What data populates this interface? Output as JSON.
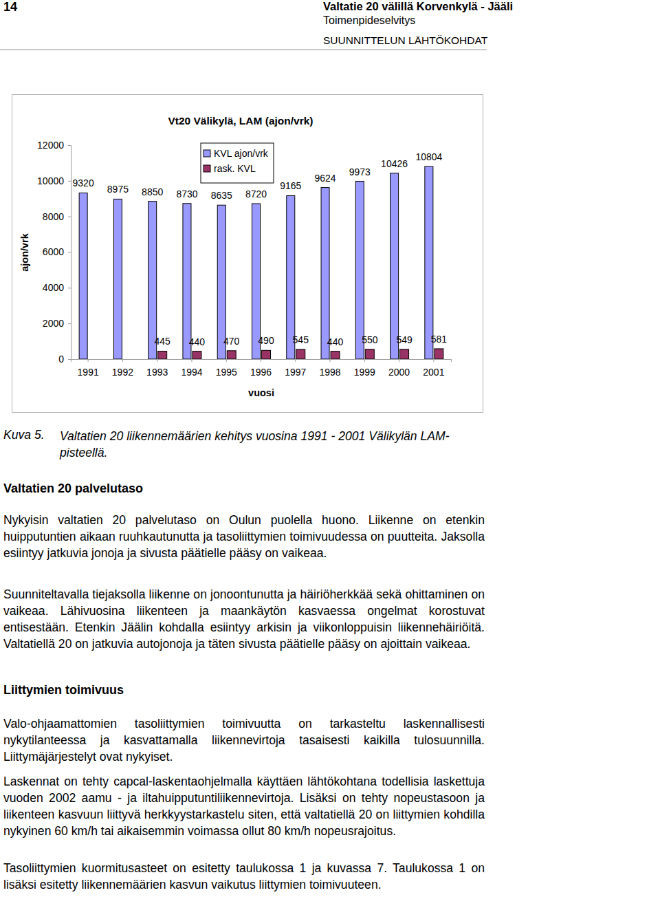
{
  "header": {
    "page_number": 14,
    "title": "Valtatie 20 välillä Korvenkylä - Jääli",
    "subtitle": "Toimenpideselvitys",
    "section": "SUUNNITTELUN LÄHTÖKOHDAT"
  },
  "chart_data": {
    "type": "bar",
    "title": "Vt20 Välikylä, LAM (ajon/vrk)",
    "x_label": "vuosi",
    "y_label": "ajon/vrk",
    "categories": [
      "1991",
      "1992",
      "1993",
      "1994",
      "1995",
      "1996",
      "1997",
      "1998",
      "1999",
      "2000",
      "2001"
    ],
    "series": [
      {
        "name": "KVL ajon/vrk",
        "color": "#9999ff",
        "values": [
          9320,
          8975,
          8850,
          8730,
          8635,
          8720,
          9165,
          9624,
          9973,
          10426,
          10804
        ]
      },
      {
        "name": "rask. KVL",
        "color": "#993366",
        "values": [
          null,
          null,
          445,
          440,
          470,
          490,
          545,
          440,
          550,
          549,
          581
        ]
      }
    ],
    "ylim": [
      0,
      12000
    ],
    "yticks": [
      0,
      2000,
      4000,
      6000,
      8000,
      10000,
      12000
    ],
    "grid": false,
    "legend": "top-left",
    "data_labels": true
  },
  "caption": {
    "label": "Kuva 5.",
    "text": "Valtatien 20 liikennemäärien kehitys vuosina 1991 - 2001 Välikylän LAM-pisteellä."
  },
  "sections": [
    {
      "heading": "Valtatien 20 palvelutaso",
      "paragraphs": [
        "Nykyisin valtatien 20 palvelutaso on Oulun puolella huono. Liikenne on etenkin huipputuntien aikaan ruuhkautunutta ja tasoliittymien toimivuudessa on puutteita. Jaksolla esiintyy jatkuvia jonoja ja sivusta päätielle pääsy on vaikeaa.",
        "Suunniteltavalla tiejaksolla liikenne on jonoontunutta ja häiriöherkkää sekä ohittaminen on vaikeaa. Lähivuosina liikenteen ja maankäytön kasvaessa ongelmat korostuvat entisestään. Etenkin Jäälin kohdalla esiintyy arkisin ja viikonloppuisin liikennehäiriöitä. Valtatiellä 20 on jatkuvia autojonoja ja täten sivusta päätielle pääsy on ajoittain vaikeaa."
      ]
    },
    {
      "heading": "Liittymien toimivuus",
      "paragraphs": [
        "Valo-ohjaamattomien tasoliittymien toimivuutta on tarkasteltu laskennallisesti nykytilanteessa ja kasvattamalla liikennevirtoja tasaisesti kaikilla tulosuunnilla. Liittymäjärjestelyt ovat nykyiset.",
        "Laskennat on tehty capcal-laskentaohjelmalla käyttäen lähtökohtana todellisia laskettuja vuoden 2002 aamu - ja iltahuipputuntiliikennevirtoja. Lisäksi on tehty nopeustasoon ja liikenteen kasvuun liittyvä herkkyystarkastelu siten, että valtatiellä 20 on liittymien kohdilla nykyinen 60 km/h tai aikaisemmin voimassa ollut 80 km/h nopeusrajoitus.",
        "Tasoliittymien kuormitusasteet on esitetty taulukossa 1 ja kuvassa 7. Taulukossa 1 on lisäksi esitetty liikennemäärien kasvun vaikutus liittymien toimivuuteen."
      ]
    }
  ]
}
